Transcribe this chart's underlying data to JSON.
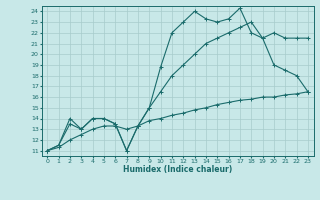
{
  "xlabel": "Humidex (Indice chaleur)",
  "xlim": [
    -0.5,
    23.5
  ],
  "ylim": [
    10.5,
    24.5
  ],
  "xticks": [
    0,
    1,
    2,
    3,
    4,
    5,
    6,
    7,
    8,
    9,
    10,
    11,
    12,
    13,
    14,
    15,
    16,
    17,
    18,
    19,
    20,
    21,
    22,
    23
  ],
  "yticks": [
    11,
    12,
    13,
    14,
    15,
    16,
    17,
    18,
    19,
    20,
    21,
    22,
    23,
    24
  ],
  "bg_color": "#c8e8e8",
  "line_color": "#1a6b6b",
  "grid_color": "#a8cccc",
  "line1_x": [
    0,
    1,
    2,
    3,
    4,
    5,
    6,
    7,
    8,
    9,
    10,
    11,
    12,
    13,
    14,
    15,
    16,
    17,
    18,
    19,
    20,
    21,
    22,
    23
  ],
  "line1_y": [
    11.0,
    11.5,
    14.0,
    13.0,
    14.0,
    14.0,
    13.5,
    11.0,
    13.3,
    15.0,
    18.8,
    22.0,
    23.0,
    24.0,
    23.3,
    23.0,
    23.3,
    24.3,
    22.0,
    21.5,
    19.0,
    18.5,
    18.0,
    16.5
  ],
  "line2_x": [
    0,
    1,
    2,
    3,
    4,
    5,
    6,
    7,
    8,
    9,
    10,
    11,
    12,
    13,
    14,
    15,
    16,
    17,
    18,
    19,
    20,
    21,
    22,
    23
  ],
  "line2_y": [
    11.0,
    11.5,
    13.5,
    13.0,
    14.0,
    14.0,
    13.5,
    11.0,
    13.3,
    15.0,
    16.5,
    18.0,
    19.0,
    20.0,
    21.0,
    21.5,
    22.0,
    22.5,
    23.0,
    21.5,
    22.0,
    21.5,
    21.5,
    21.5
  ],
  "line3_x": [
    0,
    1,
    2,
    3,
    4,
    5,
    6,
    7,
    8,
    9,
    10,
    11,
    12,
    13,
    14,
    15,
    16,
    17,
    18,
    19,
    20,
    21,
    22,
    23
  ],
  "line3_y": [
    11.0,
    11.3,
    12.0,
    12.5,
    13.0,
    13.3,
    13.3,
    13.0,
    13.3,
    13.8,
    14.0,
    14.3,
    14.5,
    14.8,
    15.0,
    15.3,
    15.5,
    15.7,
    15.8,
    16.0,
    16.0,
    16.2,
    16.3,
    16.5
  ]
}
